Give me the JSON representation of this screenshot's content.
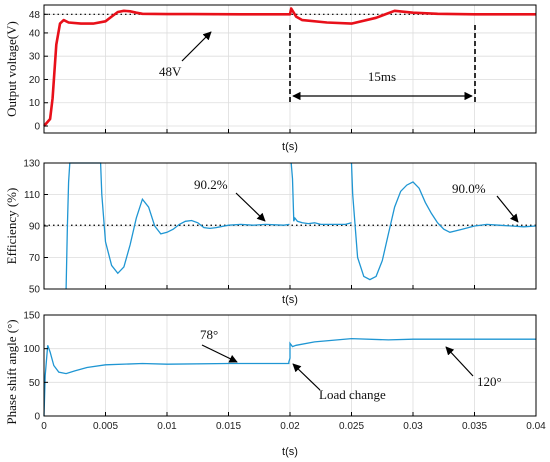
{
  "colors": {
    "trace_voltage": "#e8101a",
    "trace_blue": "#1f96d3",
    "axis": "#000000",
    "reference": "#000000"
  },
  "chart_data": [
    {
      "type": "line",
      "ylabel": "Output voltage(V)",
      "xlabel": "t(s)",
      "xlim": [
        0,
        0.04
      ],
      "ylim": [
        -3,
        52
      ],
      "yticks": [
        "0",
        "10",
        "20",
        "30",
        "40",
        "48"
      ],
      "grid": true,
      "reference_y": 48,
      "series": [
        {
          "values_x": [
            0,
            0.0005,
            0.0007,
            0.001,
            0.0013,
            0.0016,
            0.002,
            0.003,
            0.004,
            0.005,
            0.0055,
            0.006,
            0.0065,
            0.007,
            0.0075,
            0.008,
            0.01,
            0.012,
            0.016,
            0.02,
            0.0201,
            0.0205,
            0.021,
            0.023,
            0.025,
            0.027,
            0.0285,
            0.03,
            0.032,
            0.035,
            0.04
          ],
          "values_y": [
            0,
            3,
            12,
            35,
            44,
            45.5,
            44.5,
            44,
            44,
            45,
            47,
            49,
            49.5,
            49.3,
            48.7,
            48.2,
            48.1,
            48.1,
            48,
            48,
            50.5,
            47,
            45.5,
            44.5,
            44,
            46.5,
            49.5,
            48.7,
            48.2,
            48,
            48
          ]
        }
      ],
      "annotations": [
        {
          "text": "48V"
        },
        {
          "text": "15ms"
        }
      ]
    },
    {
      "type": "line",
      "ylabel": "Efficiency (%)",
      "xlabel": "t(s)",
      "xlim": [
        0,
        0.04
      ],
      "ylim": [
        50,
        130
      ],
      "yticks": [
        "50",
        "70",
        "90",
        "110",
        "130"
      ],
      "grid": true,
      "reference_y": 90.5,
      "series": [
        {
          "values_x": [
            0.0018,
            0.0019,
            0.002,
            0.0021,
            0.0046,
            0.0047,
            0.005,
            0.0055,
            0.006,
            0.0065,
            0.007,
            0.0075,
            0.008,
            0.0085,
            0.009,
            0.0095,
            0.01,
            0.0105,
            0.011,
            0.0115,
            0.012,
            0.0125,
            0.013,
            0.0135,
            0.014,
            0.015,
            0.016,
            0.017,
            0.018,
            0.0195,
            0.01995
          ],
          "values_y": [
            50,
            90,
            118,
            130,
            130,
            110,
            80,
            65,
            60,
            64,
            78,
            95,
            107,
            102,
            90,
            85,
            86,
            88,
            91,
            93,
            93.5,
            92,
            89,
            88.5,
            89,
            90.5,
            91,
            90.5,
            91,
            90.5,
            91
          ]
        },
        {
          "values_x": [
            0.0201,
            0.0202,
            0.0203,
            0.0203,
            0.0204,
            0.0206,
            0.021,
            0.0215,
            0.022,
            0.0225,
            0.023,
            0.0235,
            0.024,
            0.0245,
            0.025
          ],
          "values_y": [
            130,
            120,
            95,
            93,
            95,
            93,
            92,
            91.5,
            92,
            91,
            91,
            91,
            91,
            91,
            92
          ]
        },
        {
          "values_x": [
            0.025,
            0.0251,
            0.0255,
            0.026,
            0.0265,
            0.027,
            0.0275,
            0.028,
            0.0285,
            0.029,
            0.0295,
            0.03,
            0.0305,
            0.031,
            0.0315,
            0.032,
            0.0325,
            0.033,
            0.034,
            0.035,
            0.036,
            0.037,
            0.038,
            0.039,
            0.04
          ],
          "values_y": [
            130,
            110,
            70,
            58,
            56,
            58,
            68,
            85,
            102,
            112,
            116,
            118,
            114,
            105,
            98,
            92,
            88,
            86,
            88,
            90,
            91,
            90.5,
            90,
            89.5,
            90
          ]
        }
      ],
      "annotations": [
        {
          "text": "90.2%"
        },
        {
          "text": "90.0%"
        }
      ]
    },
    {
      "type": "line",
      "ylabel": "Phase shift angle (°)",
      "xlabel": "t(s)",
      "xlim": [
        0,
        0.04
      ],
      "ylim": [
        0,
        150
      ],
      "yticks": [
        "0",
        "50",
        "100",
        "150"
      ],
      "xticks": [
        "0",
        "0.005",
        "0.01",
        "0.015",
        "0.02",
        "0.025",
        "0.03",
        "0.035",
        "0.04"
      ],
      "grid": true,
      "series": [
        {
          "values_x": [
            0,
            0.0001,
            0.0003,
            0.0005,
            0.0008,
            0.0012,
            0.0018,
            0.0025,
            0.0035,
            0.005,
            0.008,
            0.01,
            0.015,
            0.0199,
            0.0199,
            0.02,
            0.02,
            0.0202,
            0.0205,
            0.022,
            0.025,
            0.028,
            0.03,
            0.034,
            0.04
          ],
          "values_y": [
            0,
            60,
            105,
            95,
            75,
            65,
            63,
            67,
            72,
            76,
            78,
            77,
            78,
            78,
            80,
            86,
            108,
            103,
            105,
            110,
            115,
            113,
            114,
            114,
            114
          ]
        }
      ],
      "annotations": [
        {
          "text": "78°"
        },
        {
          "text": "Load change"
        },
        {
          "text": "120°"
        }
      ]
    }
  ]
}
